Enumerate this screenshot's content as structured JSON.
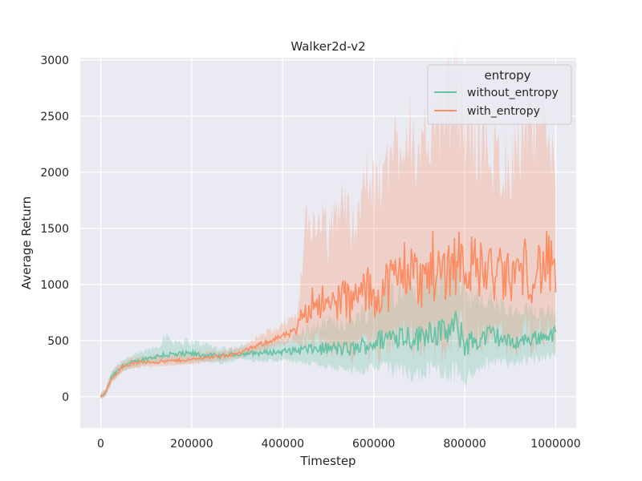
{
  "chart_data": {
    "type": "line",
    "title": "Walker2d-v2",
    "xlabel": "Timestep",
    "ylabel": "Average Return",
    "xlim": [
      -45000,
      1045000
    ],
    "ylim": [
      -280,
      3020
    ],
    "xticks": [
      0,
      200000,
      400000,
      600000,
      800000,
      1000000
    ],
    "xtick_labels": [
      "0",
      "200000",
      "400000",
      "600000",
      "800000",
      "1000000"
    ],
    "yticks": [
      0,
      500,
      1000,
      1500,
      2000,
      2500,
      3000
    ],
    "ytick_labels": [
      "0",
      "500",
      "1000",
      "1500",
      "2000",
      "2500",
      "3000"
    ],
    "grid": true,
    "legend": {
      "title": "entropy",
      "position": "top-right"
    },
    "background": "#eaeaf2",
    "series": [
      {
        "name": "without_entropy",
        "color": "#66c2a5",
        "x": [
          0,
          10000,
          25000,
          50000,
          75000,
          100000,
          125000,
          140000,
          160000,
          200000,
          230000,
          260000,
          300000,
          350000,
          400000,
          450000,
          500000,
          550000,
          600000,
          650000,
          700000,
          720000,
          750000,
          780000,
          800000,
          830000,
          860000,
          900000,
          950000,
          1000000
        ],
        "mean": [
          0,
          30,
          180,
          280,
          310,
          340,
          360,
          380,
          370,
          380,
          370,
          360,
          380,
          390,
          400,
          420,
          430,
          420,
          480,
          560,
          520,
          600,
          560,
          620,
          480,
          500,
          560,
          480,
          520,
          560
        ],
        "low": [
          -20,
          0,
          130,
          230,
          260,
          290,
          300,
          310,
          300,
          310,
          310,
          300,
          330,
          320,
          320,
          300,
          280,
          240,
          250,
          240,
          200,
          250,
          200,
          220,
          150,
          250,
          300,
          300,
          330,
          380
        ],
        "high": [
          20,
          60,
          230,
          330,
          360,
          400,
          430,
          520,
          480,
          470,
          450,
          420,
          430,
          460,
          480,
          560,
          620,
          640,
          760,
          900,
          900,
          1000,
          960,
          1100,
          900,
          780,
          820,
          700,
          720,
          760
        ]
      },
      {
        "name": "with_entropy",
        "color": "#fc8d62",
        "x": [
          0,
          10000,
          25000,
          50000,
          75000,
          100000,
          125000,
          160000,
          200000,
          230000,
          260000,
          300000,
          330000,
          360000,
          400000,
          430000,
          450000,
          480000,
          500000,
          530000,
          550000,
          580000,
          600000,
          630000,
          650000,
          680000,
          700000,
          730000,
          750000,
          780000,
          800000,
          830000,
          860000,
          900000,
          930000,
          950000,
          980000,
          1000000
        ],
        "mean": [
          0,
          30,
          170,
          270,
          300,
          310,
          310,
          320,
          330,
          350,
          360,
          380,
          430,
          480,
          540,
          580,
          800,
          880,
          780,
          900,
          820,
          950,
          900,
          1000,
          1050,
          1200,
          1000,
          1150,
          1100,
          1250,
          1200,
          1150,
          1100,
          1050,
          1150,
          1100,
          1200,
          1050
        ],
        "low": [
          -20,
          0,
          130,
          230,
          260,
          270,
          270,
          280,
          290,
          310,
          320,
          340,
          380,
          420,
          470,
          480,
          500,
          480,
          420,
          450,
          400,
          450,
          430,
          480,
          500,
          550,
          450,
          520,
          500,
          600,
          550,
          550,
          500,
          500,
          560,
          520,
          600,
          520
        ],
        "high": [
          20,
          60,
          210,
          310,
          340,
          350,
          350,
          360,
          370,
          390,
          400,
          420,
          480,
          550,
          620,
          700,
          1400,
          1500,
          1300,
          1700,
          1400,
          1800,
          1700,
          1900,
          2100,
          2300,
          1800,
          2400,
          2200,
          2600,
          2200,
          2100,
          2000,
          1900,
          2200,
          2100,
          2300,
          1900
        ]
      }
    ]
  }
}
